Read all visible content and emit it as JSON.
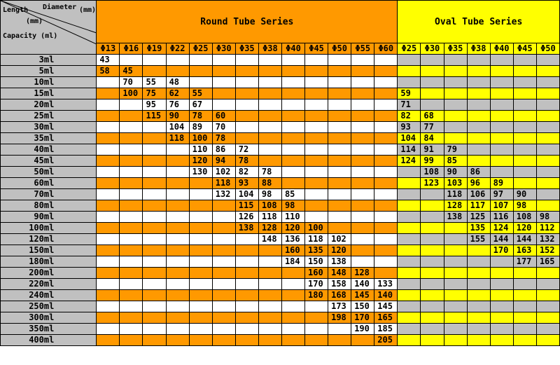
{
  "header": {
    "length_label": "Length",
    "length_unit": "(mm)",
    "diameter_label": "Diameter",
    "diameter_unit": "(mm)",
    "capacity_label": "Capacity (ml)",
    "round_series": "Round Tube Series",
    "oval_series": "Oval Tube Series"
  },
  "colors": {
    "orange": "#ff9900",
    "yellow": "#ffff00",
    "gray": "#c0c0c0",
    "white": "#ffffff"
  },
  "round_diameters": [
    "Φ13",
    "Φ16",
    "Φ19",
    "Φ22",
    "Φ25",
    "Φ30",
    "Φ35",
    "Φ38",
    "Φ40",
    "Φ45",
    "Φ50",
    "Φ55",
    "Φ60"
  ],
  "oval_diameters": [
    "Φ25",
    "Φ30",
    "Φ35",
    "Φ38",
    "Φ40",
    "Φ45",
    "Φ50"
  ],
  "rows": [
    {
      "capacity": "3ml",
      "round": [
        "43",
        "",
        "",
        "",
        "",
        "",
        "",
        "",
        "",
        "",
        "",
        "",
        ""
      ],
      "oval": [
        "",
        "",
        "",
        "",
        "",
        "",
        ""
      ]
    },
    {
      "capacity": "5ml",
      "round": [
        "58",
        "45",
        "",
        "",
        "",
        "",
        "",
        "",
        "",
        "",
        "",
        "",
        ""
      ],
      "oval": [
        "",
        "",
        "",
        "",
        "",
        "",
        ""
      ]
    },
    {
      "capacity": "10ml",
      "round": [
        "",
        "70",
        "55",
        "48",
        "",
        "",
        "",
        "",
        "",
        "",
        "",
        "",
        ""
      ],
      "oval": [
        "",
        "",
        "",
        "",
        "",
        "",
        ""
      ]
    },
    {
      "capacity": "15ml",
      "round": [
        "",
        "100",
        "75",
        "62",
        "55",
        "",
        "",
        "",
        "",
        "",
        "",
        "",
        ""
      ],
      "oval": [
        "59",
        "",
        "",
        "",
        "",
        "",
        ""
      ]
    },
    {
      "capacity": "20ml",
      "round": [
        "",
        "",
        "95",
        "76",
        "67",
        "",
        "",
        "",
        "",
        "",
        "",
        "",
        ""
      ],
      "oval": [
        "71",
        "",
        "",
        "",
        "",
        "",
        ""
      ]
    },
    {
      "capacity": "25ml",
      "round": [
        "",
        "",
        "115",
        "90",
        "78",
        "60",
        "",
        "",
        "",
        "",
        "",
        "",
        ""
      ],
      "oval": [
        "82",
        "68",
        "",
        "",
        "",
        "",
        ""
      ]
    },
    {
      "capacity": "30ml",
      "round": [
        "",
        "",
        "",
        "104",
        "89",
        "70",
        "",
        "",
        "",
        "",
        "",
        "",
        ""
      ],
      "oval": [
        "93",
        "77",
        "",
        "",
        "",
        "",
        ""
      ]
    },
    {
      "capacity": "35ml",
      "round": [
        "",
        "",
        "",
        "118",
        "100",
        "78",
        "",
        "",
        "",
        "",
        "",
        "",
        ""
      ],
      "oval": [
        "104",
        "84",
        "",
        "",
        "",
        "",
        ""
      ]
    },
    {
      "capacity": "40ml",
      "round": [
        "",
        "",
        "",
        "",
        "110",
        "86",
        "72",
        "",
        "",
        "",
        "",
        "",
        ""
      ],
      "oval": [
        "114",
        "91",
        "79",
        "",
        "",
        "",
        ""
      ]
    },
    {
      "capacity": "45ml",
      "round": [
        "",
        "",
        "",
        "",
        "120",
        "94",
        "78",
        "",
        "",
        "",
        "",
        "",
        ""
      ],
      "oval": [
        "124",
        "99",
        "85",
        "",
        "",
        "",
        ""
      ]
    },
    {
      "capacity": "50ml",
      "round": [
        "",
        "",
        "",
        "",
        "130",
        "102",
        "82",
        "78",
        "",
        "",
        "",
        "",
        ""
      ],
      "oval": [
        "",
        "108",
        "90",
        "86",
        "",
        "",
        ""
      ]
    },
    {
      "capacity": "60ml",
      "round": [
        "",
        "",
        "",
        "",
        "",
        "118",
        "93",
        "88",
        "",
        "",
        "",
        "",
        ""
      ],
      "oval": [
        "",
        "123",
        "103",
        "96",
        "89",
        "",
        ""
      ]
    },
    {
      "capacity": "70ml",
      "round": [
        "",
        "",
        "",
        "",
        "",
        "132",
        "104",
        "98",
        "85",
        "",
        "",
        "",
        ""
      ],
      "oval": [
        "",
        "",
        "118",
        "106",
        "97",
        "90",
        ""
      ]
    },
    {
      "capacity": "80ml",
      "round": [
        "",
        "",
        "",
        "",
        "",
        "",
        "115",
        "108",
        "98",
        "",
        "",
        "",
        ""
      ],
      "oval": [
        "",
        "",
        "128",
        "117",
        "107",
        "98",
        ""
      ]
    },
    {
      "capacity": "90ml",
      "round": [
        "",
        "",
        "",
        "",
        "",
        "",
        "126",
        "118",
        "110",
        "",
        "",
        "",
        ""
      ],
      "oval": [
        "",
        "",
        "138",
        "125",
        "116",
        "108",
        "98"
      ]
    },
    {
      "capacity": "100ml",
      "round": [
        "",
        "",
        "",
        "",
        "",
        "",
        "138",
        "128",
        "120",
        "100",
        "",
        "",
        ""
      ],
      "oval": [
        "",
        "",
        "",
        "135",
        "124",
        "120",
        "112"
      ]
    },
    {
      "capacity": "120ml",
      "round": [
        "",
        "",
        "",
        "",
        "",
        "",
        "",
        "148",
        "136",
        "118",
        "102",
        "",
        ""
      ],
      "oval": [
        "",
        "",
        "",
        "155",
        "144",
        "144",
        "132"
      ]
    },
    {
      "capacity": "150ml",
      "round": [
        "",
        "",
        "",
        "",
        "",
        "",
        "",
        "",
        "160",
        "135",
        "120",
        "",
        ""
      ],
      "oval": [
        "",
        "",
        "",
        "",
        "170",
        "163",
        "152"
      ]
    },
    {
      "capacity": "180ml",
      "round": [
        "",
        "",
        "",
        "",
        "",
        "",
        "",
        "",
        "184",
        "150",
        "138",
        "",
        ""
      ],
      "oval": [
        "",
        "",
        "",
        "",
        "",
        "177",
        "165"
      ]
    },
    {
      "capacity": "200ml",
      "round": [
        "",
        "",
        "",
        "",
        "",
        "",
        "",
        "",
        "",
        "160",
        "148",
        "128",
        ""
      ],
      "oval": [
        "",
        "",
        "",
        "",
        "",
        "",
        ""
      ]
    },
    {
      "capacity": "220ml",
      "round": [
        "",
        "",
        "",
        "",
        "",
        "",
        "",
        "",
        "",
        "170",
        "158",
        "140",
        "133"
      ],
      "oval": [
        "",
        "",
        "",
        "",
        "",
        "",
        ""
      ]
    },
    {
      "capacity": "240ml",
      "round": [
        "",
        "",
        "",
        "",
        "",
        "",
        "",
        "",
        "",
        "180",
        "168",
        "145",
        "140"
      ],
      "oval": [
        "",
        "",
        "",
        "",
        "",
        "",
        ""
      ]
    },
    {
      "capacity": "250ml",
      "round": [
        "",
        "",
        "",
        "",
        "",
        "",
        "",
        "",
        "",
        "",
        "173",
        "150",
        "145"
      ],
      "oval": [
        "",
        "",
        "",
        "",
        "",
        "",
        ""
      ]
    },
    {
      "capacity": "300ml",
      "round": [
        "",
        "",
        "",
        "",
        "",
        "",
        "",
        "",
        "",
        "",
        "198",
        "170",
        "165"
      ],
      "oval": [
        "",
        "",
        "",
        "",
        "",
        "",
        ""
      ]
    },
    {
      "capacity": "350ml",
      "round": [
        "",
        "",
        "",
        "",
        "",
        "",
        "",
        "",
        "",
        "",
        "",
        "190",
        "185"
      ],
      "oval": [
        "",
        "",
        "",
        "",
        "",
        "",
        ""
      ]
    },
    {
      "capacity": "400ml",
      "round": [
        "",
        "",
        "",
        "",
        "",
        "",
        "",
        "",
        "",
        "",
        "",
        "",
        "205"
      ],
      "oval": [
        "",
        "",
        "",
        "",
        "",
        "",
        ""
      ]
    }
  ]
}
